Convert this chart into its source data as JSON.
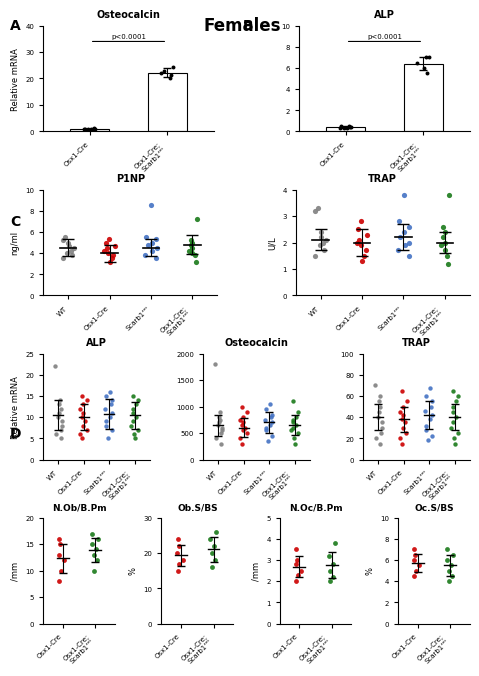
{
  "title": "Females",
  "panel_A": {
    "osteocalcin": {
      "groups": [
        "Osx1-Cre",
        "Osx1-Cre;Scarb1ᶟᵐ"
      ],
      "ctrl_vals": [
        0.8,
        0.9,
        1.0,
        0.7,
        0.6,
        0.8,
        0.9,
        1.1,
        0.8
      ],
      "exp_vals": [
        20.0,
        22.0,
        24.5,
        21.5,
        23.0
      ],
      "ctrl_mean": 0.85,
      "exp_mean": 22.2,
      "ctrl_sd": 0.15,
      "exp_sd": 1.8,
      "ylim": [
        0,
        40
      ],
      "yticks": [
        0,
        10,
        20,
        30,
        40
      ],
      "ylabel": "Relative mRNA",
      "pval": "p<0.0001"
    },
    "alp": {
      "groups": [
        "Osx1-Cre",
        "Osx1-Cre;Scarb1ᶟᵐ"
      ],
      "ctrl_vals": [
        0.3,
        0.4,
        0.5,
        0.3,
        0.4,
        0.5,
        0.3,
        0.4
      ],
      "exp_vals": [
        6.0,
        7.0,
        6.5,
        7.0,
        5.5
      ],
      "ctrl_mean": 0.4,
      "exp_mean": 6.4,
      "ctrl_sd": 0.08,
      "exp_sd": 0.6,
      "ylim": [
        0,
        10
      ],
      "yticks": [
        0,
        2,
        4,
        6,
        8,
        10
      ],
      "pval": "p<0.0001"
    }
  },
  "panel_B": {
    "p1np": {
      "title": "P1NP",
      "ylabel": "ng/ml",
      "ylim": [
        0,
        10
      ],
      "yticks": [
        0,
        2,
        4,
        6,
        8,
        10
      ],
      "groups": [
        "WT",
        "Osx1-Cre",
        "Scarb1ᶟᵐ",
        "Osx1-Cre;Scarb1ᶟᵐ"
      ],
      "colors": [
        "#808080",
        "#cc0000",
        "#4472c4",
        "#1a7a1a"
      ],
      "means": [
        4.5,
        4.0,
        4.5,
        4.8
      ],
      "sds": [
        0.8,
        0.8,
        0.8,
        0.9
      ],
      "wt_pts": [
        3.5,
        3.8,
        4.0,
        4.2,
        4.5,
        4.7,
        5.0,
        5.2,
        5.5
      ],
      "cre_pts": [
        3.2,
        3.5,
        3.8,
        4.0,
        4.2,
        4.5,
        4.7,
        5.0,
        5.3
      ],
      "scb_pts": [
        3.5,
        3.8,
        4.2,
        4.5,
        4.8,
        5.0,
        5.3,
        5.5,
        8.5
      ],
      "crscb_pts": [
        3.2,
        3.8,
        4.0,
        4.2,
        4.5,
        4.8,
        5.0,
        5.2,
        7.2
      ]
    },
    "trap": {
      "title": "TRAP",
      "ylabel": "U/L",
      "ylim": [
        0,
        4
      ],
      "yticks": [
        0,
        1,
        2,
        3,
        4
      ],
      "groups": [
        "WT",
        "Osx1-Cre",
        "Scarb1ᶟᵐ",
        "Osx1-Cre;Scarb1ᶟᵐ"
      ],
      "colors": [
        "#808080",
        "#cc0000",
        "#4472c4",
        "#1a7a1a"
      ],
      "means": [
        2.1,
        2.0,
        2.2,
        2.0
      ],
      "sds": [
        0.4,
        0.5,
        0.5,
        0.4
      ],
      "wt_pts": [
        1.5,
        1.7,
        1.9,
        2.0,
        2.1,
        2.2,
        2.4,
        3.2,
        3.3
      ],
      "cre_pts": [
        1.3,
        1.5,
        1.7,
        1.9,
        2.0,
        2.1,
        2.3,
        2.5,
        2.8
      ],
      "scb_pts": [
        1.5,
        1.7,
        1.9,
        2.0,
        2.2,
        2.4,
        2.6,
        2.8,
        3.8
      ],
      "crscb_pts": [
        1.2,
        1.5,
        1.7,
        1.9,
        2.0,
        2.2,
        2.4,
        2.6,
        3.8
      ]
    }
  },
  "panel_C": {
    "alp": {
      "title": "ALP",
      "ylabel": "Relative mRNA",
      "ylim": [
        0,
        25
      ],
      "yticks": [
        0,
        5,
        10,
        15,
        20,
        25
      ],
      "groups": [
        "WT",
        "Osx1-Cre",
        "Scarb1ᶟᵐ",
        "Osx1-Cre;Scarb1ᶟᵐ"
      ],
      "colors": [
        "#808080",
        "#cc0000",
        "#4472c4",
        "#1a7a1a"
      ],
      "means": [
        10.5,
        10.0,
        10.8,
        10.5
      ],
      "sds": [
        3.5,
        3.0,
        3.5,
        3.2
      ],
      "wt_pts": [
        5,
        6,
        7,
        8,
        9,
        10,
        11,
        12,
        13,
        14,
        22
      ],
      "cre_pts": [
        5,
        6,
        7,
        8,
        9,
        10,
        11,
        12,
        13,
        14,
        15
      ],
      "scb_pts": [
        5,
        7,
        8,
        9,
        10,
        11,
        12,
        13,
        14,
        15,
        16
      ],
      "crscb_pts": [
        5,
        6,
        7,
        8,
        9,
        10,
        11,
        12,
        13,
        14,
        15
      ]
    },
    "osteocalcin": {
      "title": "Osteocalcin",
      "ylim": [
        0,
        2000
      ],
      "yticks": [
        0,
        500,
        1000,
        1500,
        2000
      ],
      "groups": [
        "WT",
        "Osx1-Cre",
        "Scarb1ᶟᵐ",
        "Osx1-Cre;Scarb1ᶟᵐ"
      ],
      "colors": [
        "#808080",
        "#cc0000",
        "#4472c4",
        "#1a7a1a"
      ],
      "means": [
        650,
        600,
        700,
        650
      ],
      "sds": [
        200,
        180,
        200,
        190
      ],
      "wt_pts": [
        300,
        400,
        500,
        550,
        600,
        650,
        700,
        750,
        800,
        900,
        1800
      ],
      "cre_pts": [
        300,
        400,
        500,
        550,
        600,
        650,
        700,
        750,
        800,
        900,
        1000
      ],
      "scb_pts": [
        350,
        450,
        550,
        600,
        650,
        700,
        750,
        800,
        850,
        950,
        1050
      ],
      "crscb_pts": [
        300,
        400,
        500,
        550,
        600,
        650,
        700,
        750,
        800,
        900,
        1100
      ]
    },
    "trap": {
      "title": "TRAP",
      "ylim": [
        0,
        100
      ],
      "yticks": [
        0,
        20,
        40,
        60,
        80,
        100
      ],
      "groups": [
        "WT",
        "Osx1-Cre",
        "Scarb1ᶟᵐ",
        "Osx1-Cre;Scarb1ᶟᵐ"
      ],
      "colors": [
        "#808080",
        "#cc0000",
        "#4472c4",
        "#1a7a1a"
      ],
      "means": [
        40,
        38,
        42,
        40
      ],
      "sds": [
        12,
        12,
        13,
        12
      ],
      "wt_pts": [
        15,
        20,
        25,
        30,
        35,
        40,
        45,
        50,
        55,
        60,
        70
      ],
      "cre_pts": [
        15,
        20,
        25,
        30,
        35,
        38,
        42,
        45,
        50,
        55,
        65
      ],
      "scb_pts": [
        18,
        22,
        28,
        32,
        38,
        42,
        46,
        50,
        55,
        60,
        68
      ],
      "crscb_pts": [
        15,
        20,
        25,
        30,
        35,
        40,
        45,
        50,
        55,
        60,
        65
      ]
    }
  },
  "panel_D": {
    "nob_bpm": {
      "title": "N.Ob/B.Pm",
      "ylabel": "/mm",
      "ylim": [
        0,
        20
      ],
      "yticks": [
        0,
        5,
        10,
        15,
        20
      ],
      "groups": [
        "Osx1-Cre",
        "Osx1-Cre;Scarb1ᶟᵐ"
      ],
      "colors": [
        "#cc0000",
        "#1a7a1a"
      ],
      "cre_pts": [
        8,
        10,
        12,
        13,
        15,
        16
      ],
      "crscb_pts": [
        10,
        12,
        13,
        14,
        15,
        16,
        17
      ]
    },
    "ob_bs": {
      "title": "Ob.S/BS",
      "ylabel": "%",
      "ylim": [
        0,
        30
      ],
      "yticks": [
        0,
        10,
        20,
        30
      ],
      "groups": [
        "Osx1-Cre",
        "Osx1-Cre;Scarb1ᶟᵐ"
      ],
      "colors": [
        "#cc0000",
        "#1a7a1a"
      ],
      "cre_pts": [
        15,
        17,
        18,
        20,
        22,
        24
      ],
      "crscb_pts": [
        16,
        18,
        20,
        22,
        24,
        26
      ]
    },
    "noc_bpm": {
      "title": "N.Oc/B.Pm",
      "ylabel": "/mm",
      "ylim": [
        0,
        5
      ],
      "yticks": [
        0,
        1,
        2,
        3,
        4,
        5
      ],
      "groups": [
        "Osx1-Cre",
        "Osx1-Cre;Scarb1ᶟᵐ"
      ],
      "colors": [
        "#cc0000",
        "#1a7a1a"
      ],
      "cre_pts": [
        2.0,
        2.3,
        2.5,
        2.8,
        3.0,
        3.5
      ],
      "crscb_pts": [
        2.0,
        2.2,
        2.5,
        2.8,
        3.2,
        3.8
      ]
    },
    "oc_bs": {
      "title": "Oc.S/BS",
      "ylabel": "%",
      "ylim": [
        0,
        10
      ],
      "yticks": [
        0,
        2,
        4,
        6,
        8,
        10
      ],
      "groups": [
        "Osx1-Cre",
        "Osx1-Cre;Scarb1ᶟᵐ"
      ],
      "colors": [
        "#cc0000",
        "#1a7a1a"
      ],
      "cre_pts": [
        4.5,
        5.0,
        5.5,
        6.0,
        6.5,
        7.0
      ],
      "crscb_pts": [
        4.0,
        4.5,
        5.0,
        5.5,
        6.0,
        6.5,
        7.0
      ]
    }
  }
}
